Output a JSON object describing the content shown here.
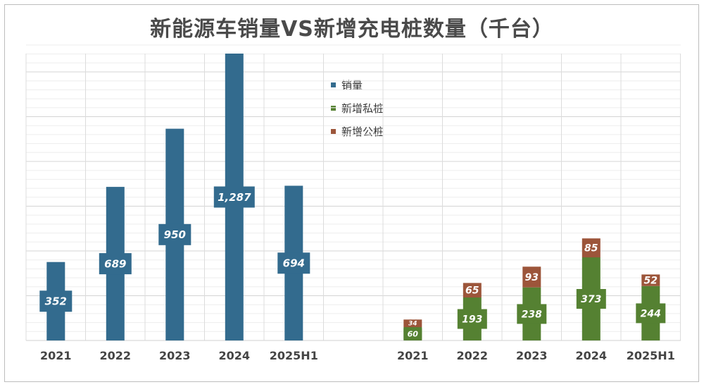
{
  "title": "新能源车销量VS新增充电桩数量（千台）",
  "legend": [
    {
      "label": "销量",
      "color": "#336b8e"
    },
    {
      "label": "新增私桩",
      "color": "#558132"
    },
    {
      "label": "新增公桩",
      "color": "#9c553a"
    }
  ],
  "chart_data": {
    "type": "bar",
    "title": "新能源车销量VS新增充电桩数量（千台）",
    "legend_placement": "top-center",
    "grid": true,
    "categories": [
      "2021",
      "2022",
      "2023",
      "2024",
      "2025H1"
    ],
    "groups": [
      {
        "categories": [
          "2021",
          "2022",
          "2023",
          "2024",
          "2025H1"
        ],
        "stacked": false,
        "series": [
          {
            "name": "销量",
            "color": "#336b8e",
            "values": [
              352,
              689,
              950,
              1287,
              694
            ],
            "labels": [
              "352",
              "689",
              "950",
              "1,287",
              "694"
            ]
          }
        ]
      },
      {
        "categories": [
          "2021",
          "2022",
          "2023",
          "2024",
          "2025H1"
        ],
        "stacked": true,
        "series": [
          {
            "name": "新增私桩",
            "color": "#558132",
            "values": [
              60,
              193,
              238,
              373,
              244
            ],
            "labels": [
              "60",
              "193",
              "238",
              "373",
              "244"
            ]
          },
          {
            "name": "新增公桩",
            "color": "#9c553a",
            "values": [
              34,
              65,
              93,
              85,
              52
            ],
            "labels": [
              "34",
              "65",
              "93",
              "85",
              "52"
            ]
          }
        ]
      }
    ]
  }
}
